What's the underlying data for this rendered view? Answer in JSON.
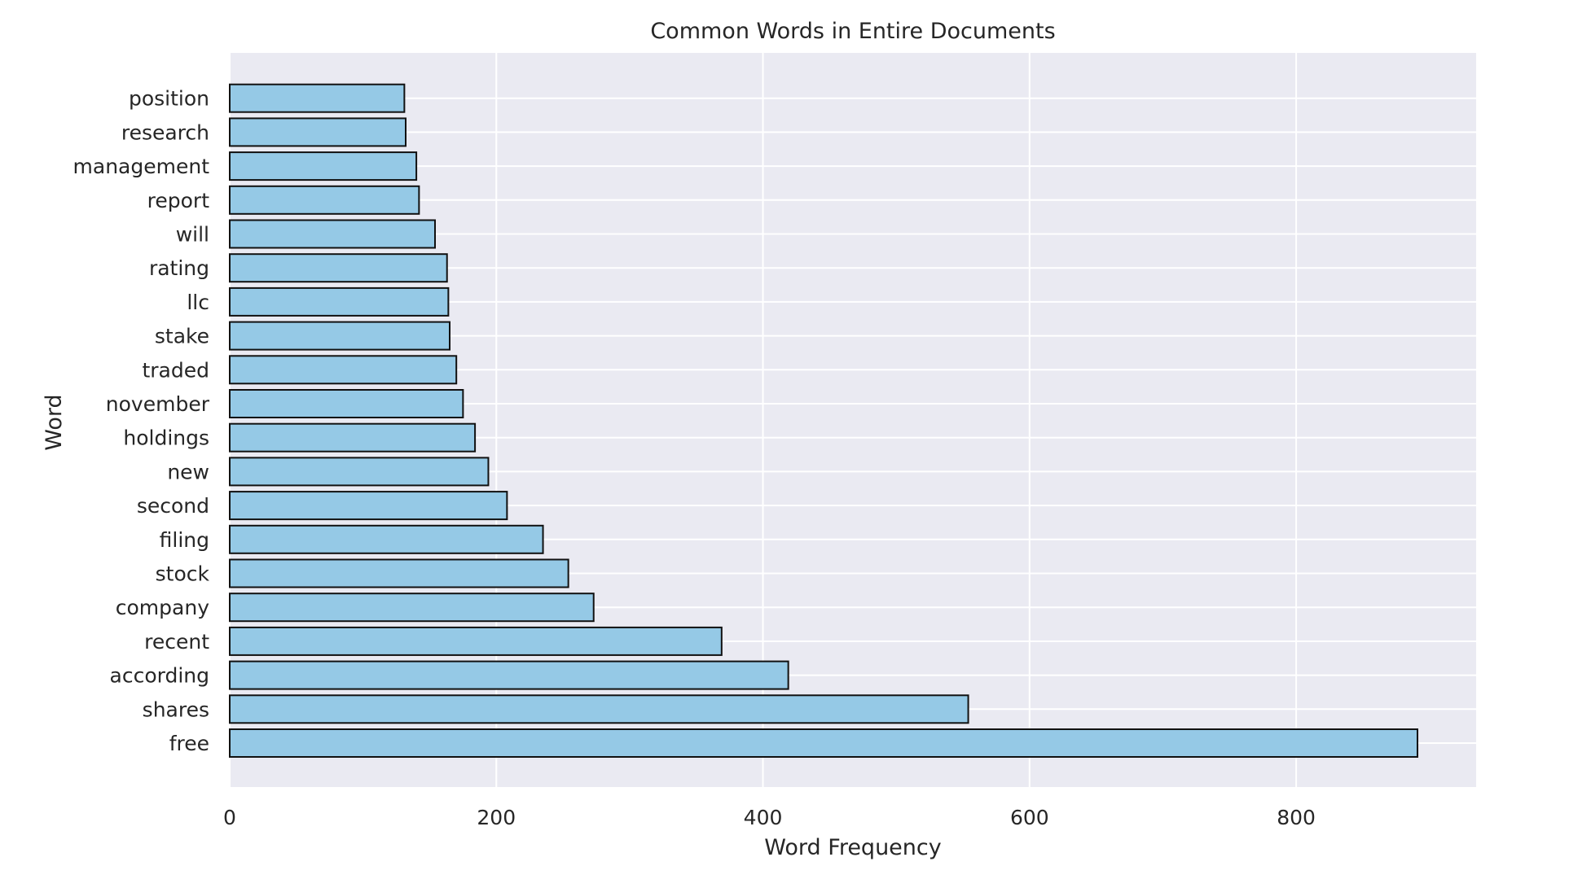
{
  "chart_data": {
    "type": "bar",
    "orientation": "horizontal",
    "title": "Common Words in Entire Documents",
    "xlabel": "Word Frequency",
    "ylabel": "Word",
    "xlim": [
      0,
      935
    ],
    "xticks": [
      0,
      200,
      400,
      600,
      800
    ],
    "grid": true,
    "categories": [
      "free",
      "shares",
      "according",
      "recent",
      "company",
      "stock",
      "filing",
      "second",
      "new",
      "holdings",
      "november",
      "traded",
      "stake",
      "llc",
      "rating",
      "will",
      "report",
      "management",
      "research",
      "position"
    ],
    "values": [
      891,
      554,
      419,
      369,
      273,
      254,
      235,
      208,
      194,
      184,
      175,
      170,
      165,
      164,
      163,
      154,
      142,
      140,
      132,
      131
    ],
    "colors": {
      "bar_fill": "#95c9e6",
      "bar_edge": "#111111",
      "plot_background": "#eaeaf2",
      "grid": "#ffffff",
      "text": "#262626"
    }
  }
}
